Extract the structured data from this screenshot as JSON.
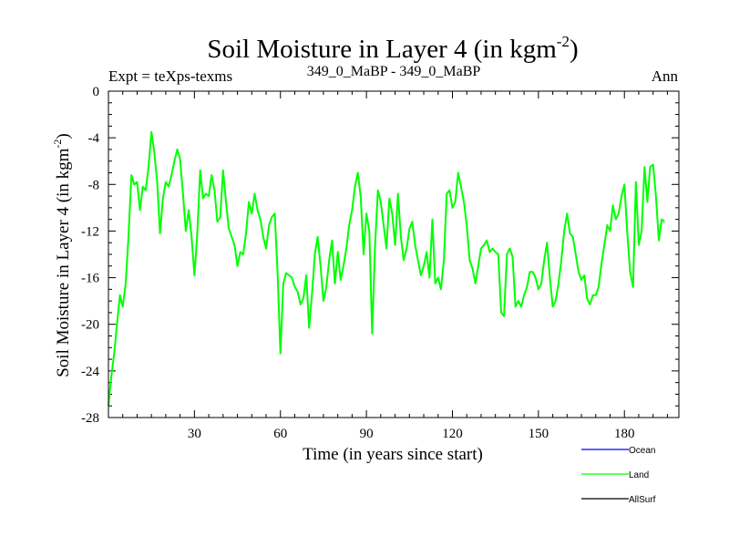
{
  "chart_data": {
    "type": "line",
    "title": "Soil Moisture in Layer 4 (in kgm",
    "title_sup": "-2",
    "title_close": ")",
    "subtitle_left": "Expt = teXps-texms",
    "subtitle_center": "349_0_MaBP - 349_0_MaBP",
    "subtitle_right": "Ann",
    "xlabel": "Time (in years since start)",
    "ylabel": "Soil Moisture in Layer 4 (in kgm",
    "ylabel_sup": "-2",
    "ylabel_close": ")",
    "xlim": [
      0,
      199
    ],
    "ylim": [
      -28,
      0
    ],
    "xticks": [
      30,
      60,
      90,
      120,
      150,
      180
    ],
    "yticks": [
      0,
      -4,
      -8,
      -12,
      -16,
      -20,
      -24,
      -28
    ],
    "series": [
      {
        "name": "Ocean",
        "color": "#0000ff",
        "values": []
      },
      {
        "name": "Land",
        "color": "#00ff00",
        "x_start": 0,
        "x_step": 1,
        "values": [
          -27.0,
          -24.5,
          -22.5,
          -20.0,
          -17.5,
          -18.5,
          -16.5,
          -12.5,
          -7.2,
          -8.0,
          -7.8,
          -10.2,
          -8.2,
          -8.5,
          -6.5,
          -3.5,
          -5.2,
          -7.8,
          -12.2,
          -9.2,
          -7.8,
          -8.2,
          -7.2,
          -6.0,
          -5.0,
          -5.8,
          -8.8,
          -12.0,
          -10.2,
          -12.5,
          -15.8,
          -12.2,
          -6.8,
          -9.2,
          -8.8,
          -9.0,
          -7.2,
          -8.5,
          -11.2,
          -10.8,
          -6.8,
          -9.5,
          -11.8,
          -12.5,
          -13.2,
          -15.0,
          -13.8,
          -14.0,
          -12.2,
          -9.5,
          -10.5,
          -8.8,
          -10.2,
          -11.0,
          -12.5,
          -13.5,
          -11.5,
          -10.8,
          -10.5,
          -15.5,
          -22.5,
          -16.5,
          -15.6,
          -15.8,
          -16.0,
          -16.8,
          -17.2,
          -18.3,
          -17.8,
          -15.8,
          -20.3,
          -17.5,
          -14.0,
          -12.5,
          -15.0,
          -18.0,
          -16.8,
          -14.5,
          -12.8,
          -16.5,
          -13.8,
          -16.2,
          -15.0,
          -13.5,
          -11.5,
          -10.2,
          -8.2,
          -7.0,
          -9.0,
          -14.0,
          -10.5,
          -12.0,
          -20.8,
          -13.2,
          -8.5,
          -9.5,
          -11.5,
          -13.5,
          -9.2,
          -10.5,
          -13.2,
          -8.8,
          -12.5,
          -14.5,
          -13.5,
          -11.8,
          -11.2,
          -13.2,
          -14.5,
          -15.8,
          -15.0,
          -13.8,
          -16.0,
          -11.0,
          -16.5,
          -16.0,
          -17.0,
          -14.5,
          -8.8,
          -8.5,
          -10.0,
          -9.5,
          -7.0,
          -8.2,
          -9.5,
          -11.5,
          -14.5,
          -15.2,
          -16.5,
          -15.0,
          -13.5,
          -13.2,
          -12.8,
          -13.8,
          -13.5,
          -13.8,
          -14.0,
          -19.0,
          -19.3,
          -14.0,
          -13.5,
          -14.2,
          -18.5,
          -18.0,
          -18.5,
          -17.5,
          -16.8,
          -15.5,
          -15.5,
          -16.0,
          -17.0,
          -16.5,
          -14.5,
          -13.0,
          -16.0,
          -18.5,
          -18.0,
          -16.5,
          -14.5,
          -12.0,
          -10.5,
          -12.2,
          -12.5,
          -14.0,
          -15.5,
          -16.2,
          -15.8,
          -17.8,
          -18.3,
          -17.5,
          -17.5,
          -16.8,
          -14.8,
          -13.2,
          -11.5,
          -12.0,
          -9.8,
          -11.0,
          -10.5,
          -9.0,
          -8.0,
          -12.2,
          -15.5,
          -16.8,
          -7.8,
          -13.2,
          -12.0,
          -6.5,
          -9.5,
          -6.5,
          -6.3,
          -9.0,
          -12.8,
          -11.0,
          -11.2
        ]
      },
      {
        "name": "AllSurf",
        "color": "#000000",
        "values": []
      }
    ]
  }
}
